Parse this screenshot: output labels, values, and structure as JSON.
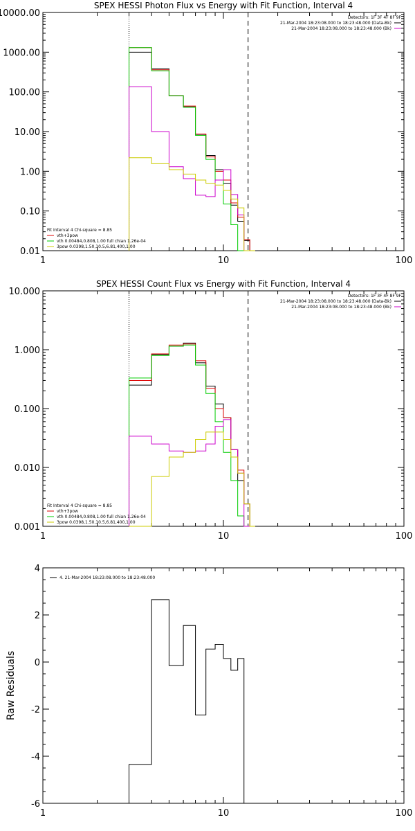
{
  "chart_data": [
    {
      "type": "line",
      "title": "SPEX HESSI Photon Flux vs Energy with Fit Function, Interval 4",
      "xscale": "log",
      "yscale": "log",
      "xlim": [
        1,
        100
      ],
      "ylim": [
        0.01,
        10000
      ],
      "xticks": [
        1,
        10,
        100
      ],
      "xtick_labels": [
        "1",
        "10",
        "100"
      ],
      "yticks": [
        0.01,
        0.1,
        1,
        10,
        100,
        1000,
        10000
      ],
      "ytick_labels": [
        "0.01",
        "0.10",
        "1.00",
        "10.00",
        "100.00",
        "1000.00",
        "10000.00"
      ],
      "vlines": [
        {
          "x": 3.0,
          "style": "dotted"
        },
        {
          "x": 13.7,
          "style": "dashed"
        }
      ],
      "legend_top": [
        {
          "text": "Detectors: 1F 3F 4F 8F 9F",
          "color": "#000000",
          "line": false
        },
        {
          "text": "21-Mar-2004 18:23:08.000 to 18:23:48.000 (Data-Bk)",
          "color": "#000000",
          "line": true
        },
        {
          "text": "21-Mar-2004 18:23:08.000 to 18:23:48.000 (Bk)",
          "color": "#cc00cc",
          "line": true
        }
      ],
      "legend_bottom": [
        {
          "text": "Fit Interval  4    Chi-square = 8.85",
          "color": "#000000",
          "line": false
        },
        {
          "text": "vth+3pow",
          "color": "#dd0000",
          "line": true
        },
        {
          "text": "vth 0.00484,0.808,1.00   full chian 1.26e-04",
          "color": "#00cc00",
          "line": true
        },
        {
          "text": "3pow 0.0398,1.50,10.5,6.81,400,1.00",
          "color": "#cccc00",
          "line": true
        }
      ],
      "bin_edges": [
        3.0,
        4.0,
        5.0,
        6.0,
        7.0,
        8.0,
        9.0,
        10.0,
        11.0,
        12.0,
        13.0,
        14.0,
        15.0
      ],
      "series": [
        {
          "color": "#000000",
          "values": [
            1000,
            380,
            80,
            42,
            8.5,
            2.5,
            1.1,
            0.5,
            0.14,
            0.055,
            0.018,
            0.009
          ]
        },
        {
          "color": "#dd0000",
          "values": [
            1300,
            360,
            80,
            44,
            8.7,
            2.3,
            1.0,
            0.6,
            0.16,
            0.07,
            0.019,
            0.009
          ]
        },
        {
          "color": "#00cc00",
          "values": [
            1300,
            340,
            80,
            41,
            8.0,
            2.0,
            0.6,
            0.15,
            0.045,
            0.009,
            0.009,
            0.009
          ]
        },
        {
          "color": "#cc00cc",
          "values": [
            135,
            10,
            1.3,
            0.65,
            0.25,
            0.23,
            0.6,
            1.1,
            0.26,
            0.08,
            0.009,
            0.009
          ]
        },
        {
          "color": "#cccc00",
          "values": [
            2.2,
            1.55,
            1.1,
            0.85,
            0.6,
            0.5,
            0.45,
            0.33,
            0.2,
            0.12,
            0.009,
            0.009
          ]
        }
      ]
    },
    {
      "type": "line",
      "title": "SPEX HESSI Count Flux vs Energy with Fit Function, Interval 4",
      "xscale": "log",
      "yscale": "log",
      "xlim": [
        1,
        100
      ],
      "ylim": [
        0.001,
        10
      ],
      "xticks": [
        1,
        10,
        100
      ],
      "xtick_labels": [
        "1",
        "10",
        "100"
      ],
      "yticks": [
        0.001,
        0.01,
        0.1,
        1,
        10
      ],
      "ytick_labels": [
        "0.001",
        "0.010",
        "0.100",
        "1.000",
        "10.000"
      ],
      "vlines": [
        {
          "x": 3.0,
          "style": "dotted"
        },
        {
          "x": 13.7,
          "style": "dashed"
        }
      ],
      "legend_top": [
        {
          "text": "Detectors: 1F 3F 4F 8F 9F",
          "color": "#000000",
          "line": false
        },
        {
          "text": "21-Mar-2004 18:23:08.000 to 18:23:48.000 (Data-Bk)",
          "color": "#000000",
          "line": true
        },
        {
          "text": "21-Mar-2004 18:23:08.000 to 18:23:48.000 (Bk)",
          "color": "#cc00cc",
          "line": true
        }
      ],
      "legend_bottom": [
        {
          "text": "Fit Interval  4    Chi-square = 8.85",
          "color": "#000000",
          "line": false
        },
        {
          "text": "vth+3pow",
          "color": "#dd0000",
          "line": true
        },
        {
          "text": "vth 0.00484,0.808,1.00   full chian 1.26e-04",
          "color": "#00cc00",
          "line": true
        },
        {
          "text": "3pow 0.0398,1.50,10.5,6.81,400,1.00",
          "color": "#cccc00",
          "line": true
        }
      ],
      "bin_edges": [
        3.0,
        4.0,
        5.0,
        6.0,
        7.0,
        8.0,
        9.0,
        10.0,
        11.0,
        12.0,
        13.0,
        14.0,
        15.0
      ],
      "series": [
        {
          "color": "#000000",
          "values": [
            0.25,
            0.83,
            1.15,
            1.3,
            0.6,
            0.24,
            0.12,
            0.07,
            0.02,
            0.006,
            0.0024,
            0.0009
          ]
        },
        {
          "color": "#dd0000",
          "values": [
            0.3,
            0.85,
            1.2,
            1.25,
            0.65,
            0.22,
            0.1,
            0.07,
            0.02,
            0.009,
            0.0024,
            0.0009
          ]
        },
        {
          "color": "#00cc00",
          "values": [
            0.33,
            0.8,
            1.15,
            1.2,
            0.55,
            0.18,
            0.06,
            0.018,
            0.006,
            0.0015,
            0.0009,
            0.0009
          ]
        },
        {
          "color": "#cc00cc",
          "values": [
            0.034,
            0.025,
            0.019,
            0.018,
            0.019,
            0.025,
            0.05,
            0.065,
            0.02,
            0.008,
            0.0009,
            0.0009
          ]
        },
        {
          "color": "#cccc00",
          "values": [
            0.0009,
            0.007,
            0.015,
            0.018,
            0.03,
            0.04,
            0.04,
            0.03,
            0.015,
            0.008,
            0.0024,
            0.0009
          ]
        }
      ]
    },
    {
      "type": "line",
      "title": "",
      "ylabel": "Raw Residuals",
      "xscale": "log",
      "yscale": "linear",
      "xlim": [
        1,
        100
      ],
      "ylim": [
        -6,
        4
      ],
      "xticks": [
        1,
        10,
        100
      ],
      "xtick_labels": [
        "1",
        "10",
        "100"
      ],
      "yticks": [
        -6,
        -4,
        -2,
        0,
        2,
        4
      ],
      "ytick_labels": [
        "-6",
        "-4",
        "-2",
        "0",
        "2",
        "4"
      ],
      "legend_top_left": [
        {
          "text": "4. 21-Mar-2004 18:23:08.000 to 18:23:48.000",
          "color": "#000000",
          "line": true
        }
      ],
      "bin_edges": [
        3.0,
        4.0,
        5.0,
        6.0,
        7.0,
        8.0,
        9.0,
        10.0,
        11.0,
        12.0,
        13.0,
        13.7
      ],
      "series": [
        {
          "color": "#000000",
          "values": [
            -4.35,
            2.65,
            -0.15,
            1.55,
            -2.25,
            0.55,
            0.75,
            0.15,
            -0.35,
            0.15,
            -6.0
          ]
        }
      ]
    }
  ]
}
